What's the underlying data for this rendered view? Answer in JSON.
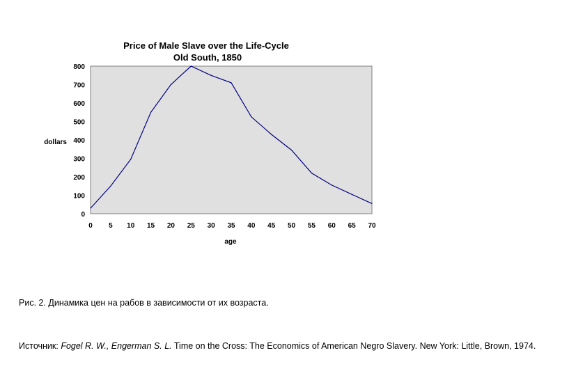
{
  "chart_data": {
    "type": "line",
    "title": "Price of Male Slave over the Life-Cycle",
    "subtitle": "Old South, 1850",
    "xlabel": "age",
    "ylabel": "dollars",
    "x": [
      0,
      5,
      10,
      15,
      20,
      25,
      30,
      35,
      40,
      45,
      50,
      55,
      60,
      65,
      70
    ],
    "values": [
      30,
      150,
      295,
      550,
      700,
      800,
      750,
      710,
      525,
      430,
      345,
      220,
      155,
      105,
      55
    ],
    "xlim": [
      0,
      70
    ],
    "ylim": [
      0,
      800
    ],
    "xticks": [
      "0",
      "5",
      "10",
      "15",
      "20",
      "25",
      "30",
      "35",
      "40",
      "45",
      "50",
      "55",
      "60",
      "65",
      "70"
    ],
    "yticks": [
      "0",
      "100",
      "200",
      "300",
      "400",
      "500",
      "600",
      "700",
      "800"
    ],
    "grid": false,
    "legend": "none",
    "colors": {
      "plot_background": "#e0e0e0",
      "plot_border": "#808080",
      "line": "#000080"
    }
  },
  "caption": "Рис. 2. Динамика цен на рабов в зависимости от их возраста.",
  "source": {
    "prefix": "Источник: ",
    "authors": "Fogel R. W., Engerman S. L.",
    "rest": " Time on the Cross: The Economics of American Negro Slavery. New York: Little, Brown, 1974."
  }
}
